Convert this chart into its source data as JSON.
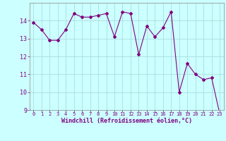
{
  "x": [
    0,
    1,
    2,
    3,
    4,
    5,
    6,
    7,
    8,
    9,
    10,
    11,
    12,
    13,
    14,
    15,
    16,
    17,
    18,
    19,
    20,
    21,
    22,
    23
  ],
  "y": [
    13.9,
    13.5,
    12.9,
    12.9,
    13.5,
    14.4,
    14.2,
    14.2,
    14.3,
    14.4,
    13.1,
    14.5,
    14.4,
    12.1,
    13.7,
    13.1,
    13.6,
    14.5,
    10.0,
    11.6,
    11.0,
    10.7,
    10.8,
    8.8
  ],
  "line_color": "#800080",
  "marker": "D",
  "marker_size": 2,
  "bg_color": "#ccffff",
  "grid_color": "#aadddd",
  "xlabel": "Windchill (Refroidissement éolien,°C)",
  "xlabel_color": "#800080",
  "tick_color": "#800080",
  "spine_color": "#888888",
  "ylim": [
    9,
    15
  ],
  "xlim": [
    -0.5,
    23.5
  ],
  "yticks": [
    9,
    10,
    11,
    12,
    13,
    14
  ],
  "xticks": [
    0,
    1,
    2,
    3,
    4,
    5,
    6,
    7,
    8,
    9,
    10,
    11,
    12,
    13,
    14,
    15,
    16,
    17,
    18,
    19,
    20,
    21,
    22,
    23
  ],
  "figsize": [
    3.2,
    2.0
  ],
  "dpi": 100
}
